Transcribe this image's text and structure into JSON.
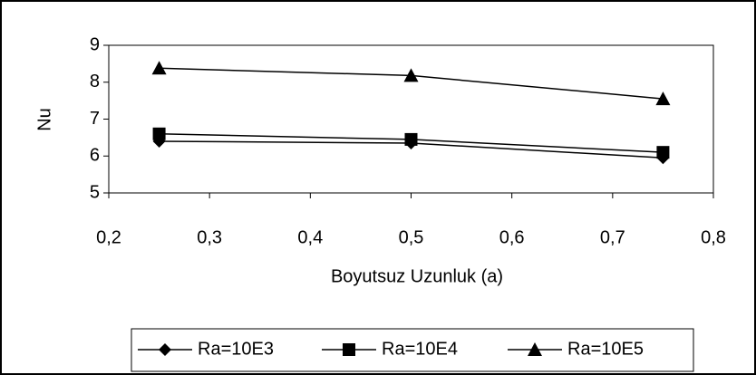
{
  "chart_data": {
    "type": "line",
    "x_label": "Boyutsuz Uzunluk (a)",
    "y_label": "Nu",
    "x": [
      0.25,
      0.5,
      0.75
    ],
    "series": [
      {
        "name": "Ra=10E3",
        "color": "#000000",
        "marker": "diamond",
        "values": [
          6.4,
          6.35,
          5.95
        ]
      },
      {
        "name": "Ra=10E4",
        "color": "#000000",
        "marker": "square",
        "values": [
          6.6,
          6.45,
          6.1
        ]
      },
      {
        "name": "Ra=10E5",
        "color": "#000000",
        "marker": "triangle",
        "values": [
          8.38,
          8.18,
          7.55
        ]
      }
    ],
    "xlim": [
      0.2,
      0.8
    ],
    "xticks": [
      {
        "value": 0.2,
        "label": "0,2"
      },
      {
        "value": 0.3,
        "label": "0,3"
      },
      {
        "value": 0.4,
        "label": "0,4"
      },
      {
        "value": 0.5,
        "label": "0,5"
      },
      {
        "value": 0.6,
        "label": "0,6"
      },
      {
        "value": 0.7,
        "label": "0,7"
      },
      {
        "value": 0.8,
        "label": "0,8"
      }
    ],
    "ylim": [
      5,
      9
    ],
    "yticks": [
      5,
      6,
      7,
      8,
      9
    ],
    "grid": false,
    "legend": "bottom"
  }
}
